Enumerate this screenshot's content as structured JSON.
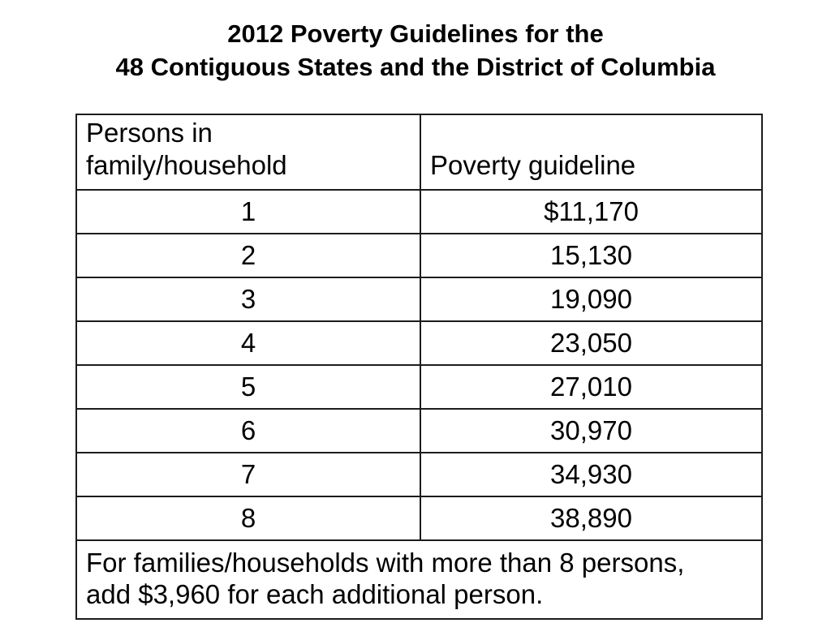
{
  "slide": {
    "title_line1": "2012 Poverty Guidelines for the",
    "title_line2": "48 Contiguous States and the District of Columbia"
  },
  "table": {
    "headers": {
      "persons_line1": "Persons in",
      "persons_line2": "family/household",
      "guideline": "Poverty guideline"
    },
    "rows": [
      {
        "persons": "1",
        "guideline": "$11,170"
      },
      {
        "persons": "2",
        "guideline": "15,130"
      },
      {
        "persons": "3",
        "guideline": "19,090"
      },
      {
        "persons": "4",
        "guideline": "23,050"
      },
      {
        "persons": "5",
        "guideline": "27,010"
      },
      {
        "persons": "6",
        "guideline": "30,970"
      },
      {
        "persons": "7",
        "guideline": "34,930"
      },
      {
        "persons": "8",
        "guideline": "38,890"
      }
    ],
    "footnote_line1": "For families/households with more than 8 persons,",
    "footnote_line2": "add $3,960 for each additional person."
  },
  "colors": {
    "text": "#000000",
    "border": "#1c1c1c",
    "background": "#ffffff"
  }
}
